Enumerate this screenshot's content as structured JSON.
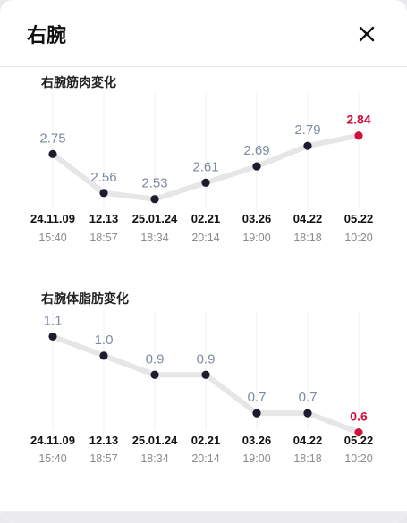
{
  "header": {
    "title": "右腕",
    "close_icon": "close-icon"
  },
  "colors": {
    "line": "#e6e6e6",
    "point": "#1c1c2e",
    "value": "#7d8aa3",
    "highlight": "#d0103a",
    "date": "#111111",
    "time": "#8a8a8a"
  },
  "chart_data": [
    {
      "type": "line",
      "title": "右腕筋肉変化",
      "categories": [
        "24.11.09",
        "12.13",
        "25.01.24",
        "02.21",
        "03.26",
        "04.22",
        "05.22"
      ],
      "times": [
        "15:40",
        "18:57",
        "18:34",
        "20:14",
        "19:00",
        "18:18",
        "10:20"
      ],
      "values": [
        2.75,
        2.56,
        2.53,
        2.61,
        2.69,
        2.79,
        2.84
      ],
      "labels": [
        "2.75",
        "2.56",
        "2.53",
        "2.61",
        "2.69",
        "2.79",
        "2.84"
      ],
      "highlight_index": 6,
      "ylim": [
        2.45,
        2.9
      ]
    },
    {
      "type": "line",
      "title": "右腕体脂肪変化",
      "categories": [
        "24.11.09",
        "12.13",
        "25.01.24",
        "02.21",
        "03.26",
        "04.22",
        "05.22"
      ],
      "times": [
        "15:40",
        "18:57",
        "18:34",
        "20:14",
        "19:00",
        "18:18",
        "10:20"
      ],
      "values": [
        1.1,
        1.0,
        0.9,
        0.9,
        0.7,
        0.7,
        0.6
      ],
      "labels": [
        "1.1",
        "1.0",
        "0.9",
        "0.9",
        "0.7",
        "0.7",
        "0.6"
      ],
      "highlight_index": 6,
      "ylim": [
        0.5,
        1.2
      ]
    }
  ]
}
